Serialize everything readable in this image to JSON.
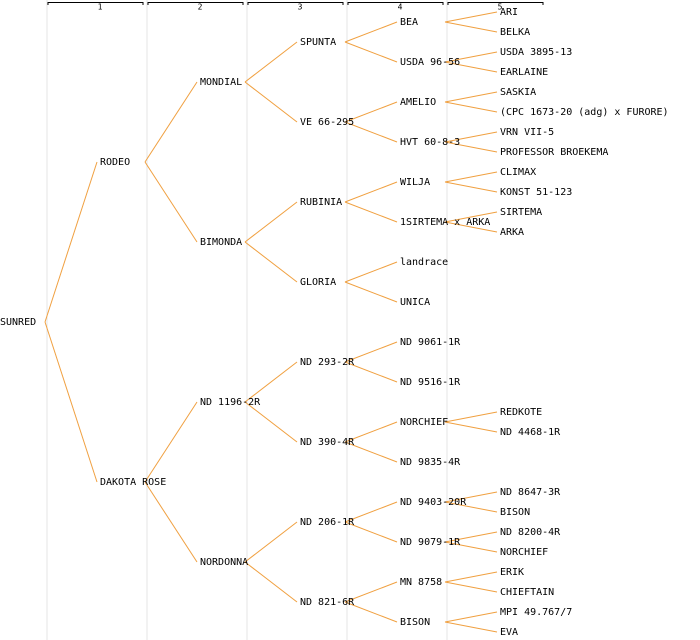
{
  "header": {
    "generations": [
      "1",
      "2",
      "3",
      "4",
      "5"
    ]
  },
  "tree": {
    "label": "SUNRED",
    "parents": [
      {
        "label": "RODEO",
        "parents": [
          {
            "label": "MONDIAL",
            "parents": [
              {
                "label": "SPUNTA",
                "parents": [
                  {
                    "label": "BEA",
                    "parents": [
                      {
                        "label": "ARI"
                      },
                      {
                        "label": "BELKA"
                      }
                    ]
                  },
                  {
                    "label": "USDA 96-56",
                    "parents": [
                      {
                        "label": "USDA 3895-13"
                      },
                      {
                        "label": "EARLAINE"
                      }
                    ]
                  }
                ]
              },
              {
                "label": "VE 66-295",
                "parents": [
                  {
                    "label": "AMELIO",
                    "parents": [
                      {
                        "label": "SASKIA"
                      },
                      {
                        "label": "(CPC 1673-20 (adg) x FURORE)"
                      }
                    ]
                  },
                  {
                    "label": "HVT 60-8-3",
                    "parents": [
                      {
                        "label": "VRN VII-5"
                      },
                      {
                        "label": "PROFESSOR BROEKEMA"
                      }
                    ]
                  }
                ]
              }
            ]
          },
          {
            "label": "BIMONDA",
            "parents": [
              {
                "label": "RUBINIA",
                "parents": [
                  {
                    "label": "WILJA",
                    "parents": [
                      {
                        "label": "CLIMAX"
                      },
                      {
                        "label": "KONST 51-123"
                      }
                    ]
                  },
                  {
                    "label": "1SIRTEMA x ARKA",
                    "parents": [
                      {
                        "label": "SIRTEMA"
                      },
                      {
                        "label": "ARKA"
                      }
                    ]
                  }
                ]
              },
              {
                "label": "GLORIA",
                "color": "#0000cc",
                "parents": [
                  {
                    "label": "landrace"
                  },
                  {
                    "label": "UNICA"
                  }
                ]
              }
            ]
          }
        ]
      },
      {
        "label": "DAKOTA ROSE",
        "parents": [
          {
            "label": "ND 1196-2R",
            "parents": [
              {
                "label": "ND 293-2R",
                "parents": [
                  {
                    "label": "ND 9061-1R"
                  },
                  {
                    "label": "ND 9516-1R"
                  }
                ]
              },
              {
                "label": "ND 390-4R",
                "parents": [
                  {
                    "label": "NORCHIEF",
                    "parents": [
                      {
                        "label": "REDKOTE"
                      },
                      {
                        "label": "ND 4468-1R"
                      }
                    ]
                  },
                  {
                    "label": "ND 9835-4R"
                  }
                ]
              }
            ]
          },
          {
            "label": "NORDONNA",
            "parents": [
              {
                "label": "ND 206-1R",
                "parents": [
                  {
                    "label": "ND 9403-20R",
                    "parents": [
                      {
                        "label": "ND 8647-3R"
                      },
                      {
                        "label": "BISON"
                      }
                    ]
                  },
                  {
                    "label": "ND 9079-1R",
                    "parents": [
                      {
                        "label": "ND 8200-4R"
                      },
                      {
                        "label": "NORCHIEF"
                      }
                    ]
                  }
                ]
              },
              {
                "label": "ND 821-6R",
                "parents": [
                  {
                    "label": "MN 8758",
                    "parents": [
                      {
                        "label": "ERIK"
                      },
                      {
                        "label": "CHIEFTAIN"
                      }
                    ]
                  },
                  {
                    "label": "BISON",
                    "color": "#0000cc",
                    "parents": [
                      {
                        "label": "MPI 49.767/7"
                      },
                      {
                        "label": "EVA"
                      }
                    ]
                  }
                ]
              }
            ]
          }
        ]
      }
    ]
  }
}
